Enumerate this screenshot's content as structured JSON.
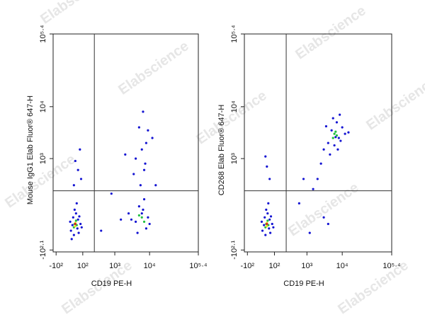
{
  "watermark": "Elabscience",
  "chart_data": [
    {
      "type": "scatter",
      "scale": "logicle",
      "x_label": "CD19 PE-H",
      "y_label": "Mouse IgG1 Elab Fluor® 647-H",
      "xlim": [
        -130,
        251189
      ],
      "ylim": [
        -140,
        251189
      ],
      "xticks": [
        {
          "value": -100,
          "label": "-10²"
        },
        {
          "value": 100,
          "label": "10²"
        },
        {
          "value": 1000,
          "label": "10³"
        },
        {
          "value": 10000,
          "label": "10⁴"
        },
        {
          "value": 251189,
          "label": "10⁵·⁴"
        }
      ],
      "yticks": [
        {
          "value": -126,
          "label": "-10²·¹"
        },
        {
          "value": 1000,
          "label": "10³"
        },
        {
          "value": 10000,
          "label": "10⁴"
        },
        {
          "value": 251189,
          "label": "10⁵·⁴"
        }
      ],
      "gates": {
        "x": 250,
        "y": 230
      },
      "series": [
        {
          "color": "#1414d2",
          "x": [
            20,
            60,
            10,
            45,
            80,
            30,
            55,
            70,
            5,
            90,
            35,
            65,
            25,
            50,
            40,
            60,
            75,
            30,
            85,
            15,
            4000,
            6000,
            8000,
            5000,
            9000,
            3000,
            7000,
            4500,
            6500,
            10000,
            5500,
            7000,
            4000,
            8000,
            6000,
            9000,
            5000,
            7500,
            3500,
            12000,
            6500,
            2500,
            800,
            1500,
            400,
            2000,
            15000
          ],
          "y": [
            5,
            30,
            -20,
            60,
            10,
            -40,
            -10,
            45,
            20,
            -5,
            80,
            -30,
            40,
            120,
            900,
            600,
            1500,
            300,
            400,
            -60,
            20,
            60,
            -10,
            100,
            40,
            30,
            150,
            -30,
            80,
            10,
            300,
            600,
            1000,
            2000,
            1500,
            3500,
            4000,
            800,
            500,
            2500,
            8000,
            60,
            200,
            30,
            -20,
            1200,
            300
          ]
        },
        {
          "color": "#20c040",
          "x": [
            35,
            45,
            30,
            50,
            6000,
            7000,
            5000
          ],
          "y": [
            10,
            25,
            -5,
            5,
            40,
            20,
            50
          ]
        },
        {
          "color": "#e8e020",
          "x": [
            40,
            38
          ],
          "y": [
            15,
            0
          ]
        },
        {
          "color": "#e02020",
          "x": [
            40
          ],
          "y": [
            10
          ]
        }
      ]
    },
    {
      "type": "scatter",
      "scale": "logicle",
      "x_label": "CD19 PE-H",
      "y_label": "CD268 Elab Fluor® 647-H",
      "xlim": [
        -130,
        251189
      ],
      "ylim": [
        -140,
        251189
      ],
      "xticks": [
        {
          "value": -100,
          "label": "-10²"
        },
        {
          "value": 100,
          "label": "10²"
        },
        {
          "value": 1000,
          "label": "10³"
        },
        {
          "value": 10000,
          "label": "10⁴"
        },
        {
          "value": 251189,
          "label": "10⁵·⁴"
        }
      ],
      "yticks": [
        {
          "value": -126,
          "label": "-10²·¹"
        },
        {
          "value": 1000,
          "label": "10³"
        },
        {
          "value": 10000,
          "label": "10⁴"
        },
        {
          "value": 251189,
          "label": "10⁵·⁴"
        }
      ],
      "gates": {
        "x": 250,
        "y": 230
      },
      "series": [
        {
          "color": "#1414d2",
          "x": [
            20,
            60,
            10,
            45,
            80,
            30,
            55,
            70,
            5,
            90,
            35,
            65,
            25,
            50,
            40,
            60,
            30,
            4000,
            5000,
            8000,
            10000,
            6000,
            7000,
            3000,
            9000,
            5500,
            12000,
            2500,
            4500,
            8500,
            6500,
            15000,
            3500,
            7500,
            2000,
            1500,
            600,
            3000,
            1200,
            800,
            4000
          ],
          "y": [
            5,
            30,
            -20,
            60,
            10,
            -40,
            -10,
            45,
            20,
            -5,
            80,
            -30,
            40,
            120,
            700,
            400,
            1100,
            2000,
            3500,
            2500,
            4000,
            1800,
            5000,
            1500,
            2200,
            6000,
            3000,
            800,
            1200,
            7000,
            2600,
            3200,
            4200,
            1500,
            400,
            250,
            120,
            40,
            -30,
            400,
            10
          ]
        },
        {
          "color": "#20c040",
          "x": [
            35,
            45,
            30,
            50,
            6000,
            7000,
            5500,
            6500
          ],
          "y": [
            10,
            25,
            -5,
            5,
            3000,
            2800,
            2500,
            3300
          ]
        },
        {
          "color": "#e8e020",
          "x": [
            40,
            38
          ],
          "y": [
            15,
            0
          ]
        },
        {
          "color": "#e02020",
          "x": [
            40
          ],
          "y": [
            10
          ]
        }
      ]
    }
  ]
}
